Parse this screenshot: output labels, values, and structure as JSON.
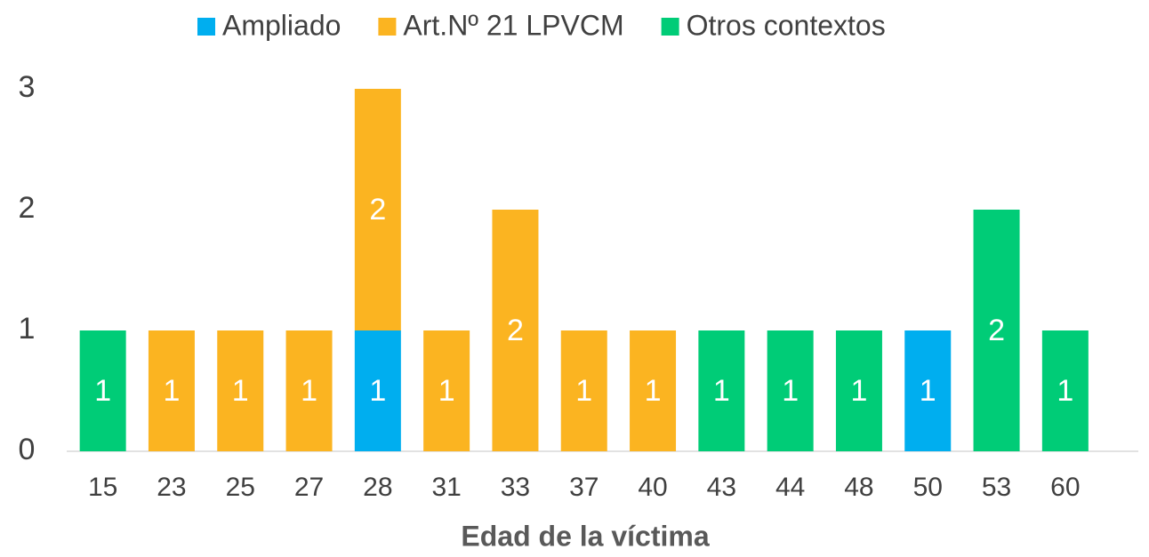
{
  "chart_data": {
    "type": "stacked_bar",
    "x_label": "Edad de la víctima",
    "categories": [
      "15",
      "23",
      "25",
      "27",
      "28",
      "31",
      "33",
      "37",
      "40",
      "43",
      "44",
      "48",
      "50",
      "53",
      "60"
    ],
    "series": [
      {
        "name": "Ampliado",
        "color": "#00aeef",
        "values": [
          null,
          null,
          null,
          null,
          1,
          null,
          null,
          null,
          null,
          null,
          null,
          null,
          1,
          null,
          null
        ]
      },
      {
        "name": "Art.Nº 21 LPVCM",
        "color": "#fbb421",
        "values": [
          null,
          1,
          1,
          1,
          2,
          1,
          2,
          1,
          1,
          null,
          null,
          null,
          null,
          null,
          null
        ]
      },
      {
        "name": "Otros contextos",
        "color": "#00cc77",
        "values": [
          1,
          null,
          null,
          null,
          null,
          null,
          null,
          null,
          null,
          1,
          1,
          1,
          null,
          2,
          1
        ]
      }
    ],
    "ylim": [
      0,
      3
    ],
    "yticks": [
      0,
      1,
      2,
      3
    ],
    "legend": "top",
    "grid": false
  }
}
